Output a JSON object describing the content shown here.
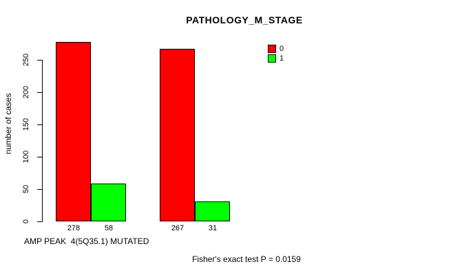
{
  "chart_data": {
    "type": "bar",
    "title": "PATHOLOGY_M_STAGE",
    "ylabel": "number of cases",
    "xlabel": "AMP PEAK  4(5Q35.1) MUTATED",
    "annotation": "Fisher's exact test P = 0.0159",
    "ylim": [
      0,
      250
    ],
    "yticks": [
      0,
      50,
      100,
      150,
      200,
      250
    ],
    "grid": false,
    "legend_position": "top-right",
    "legend": [
      {
        "label": "0",
        "color": "#FF0000"
      },
      {
        "label": "1",
        "color": "#00FF00"
      }
    ],
    "series": [
      {
        "name": "0",
        "color": "#FF0000",
        "values": [
          278,
          267
        ]
      },
      {
        "name": "1",
        "color": "#00FF00",
        "values": [
          58,
          31
        ]
      }
    ],
    "bar_value_labels": [
      [
        278,
        58
      ],
      [
        267,
        31
      ]
    ]
  }
}
